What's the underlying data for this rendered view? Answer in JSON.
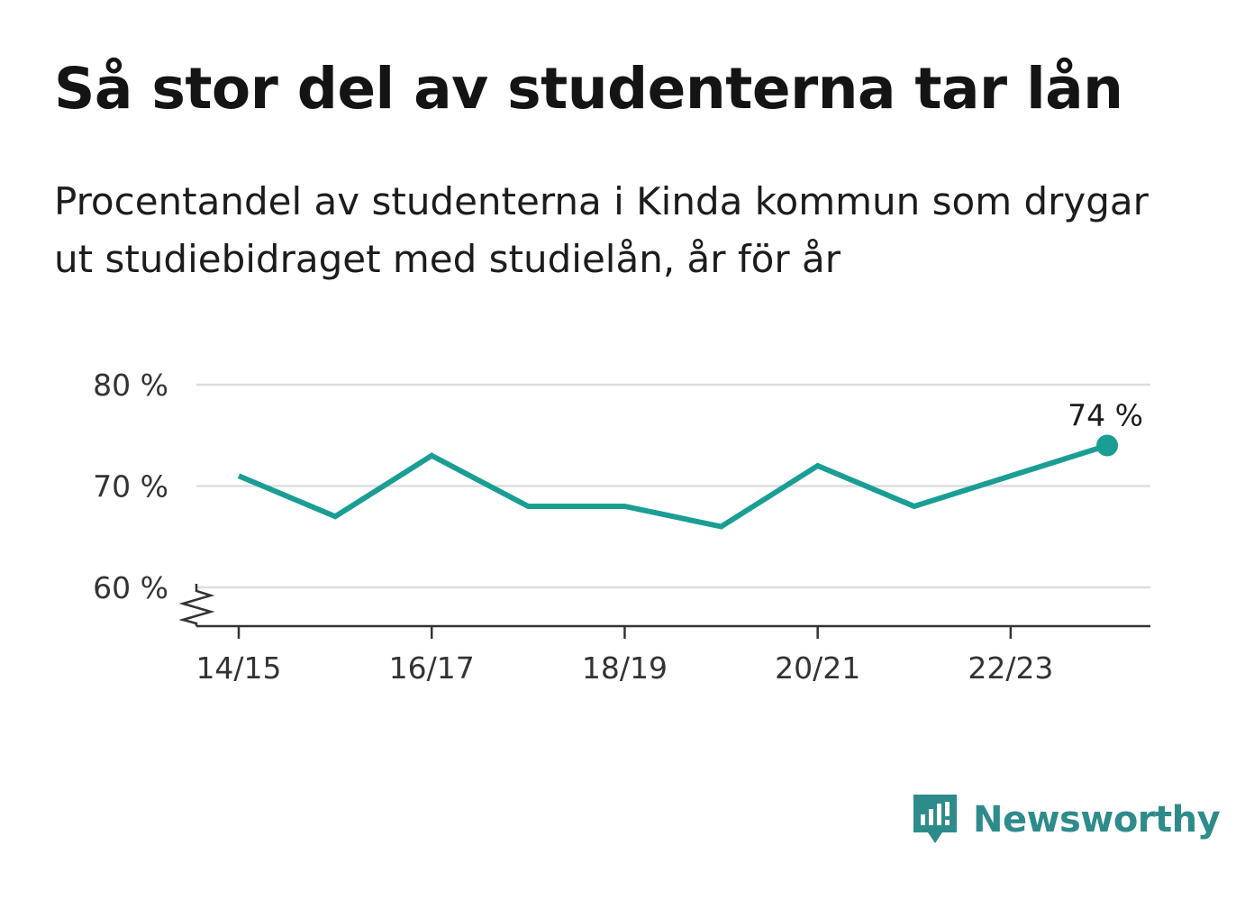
{
  "title": "Så stor del av studenterna tar lån",
  "subtitle": "Procentandel av studenterna i Kinda kommun som drygar ut studiebidraget med studielån, år för år",
  "colors": {
    "line": "#1a9e94",
    "grid": "#dddddd",
    "axis": "#333333",
    "logo": "#2e8b8b"
  },
  "brand": {
    "name": "Newsworthy",
    "icon": "newsworthy-logo-icon"
  },
  "chart_data": {
    "type": "line",
    "x": [
      "14/15",
      "15/16",
      "16/17",
      "17/18",
      "18/19",
      "19/20",
      "20/21",
      "21/22",
      "22/23",
      "23/24"
    ],
    "series": [
      {
        "values": [
          71,
          67,
          73,
          68,
          68,
          66,
          72,
          68,
          71,
          74
        ]
      }
    ],
    "x_tick_labels": [
      "14/15",
      "16/17",
      "18/19",
      "20/21",
      "22/23"
    ],
    "y_ticks": [
      60,
      70,
      80
    ],
    "y_tick_labels": [
      "60 %",
      "70 %",
      "80 %"
    ],
    "ylim": [
      56,
      80
    ],
    "y_axis_break": true,
    "grid": true,
    "last_value_label": "74 %"
  }
}
